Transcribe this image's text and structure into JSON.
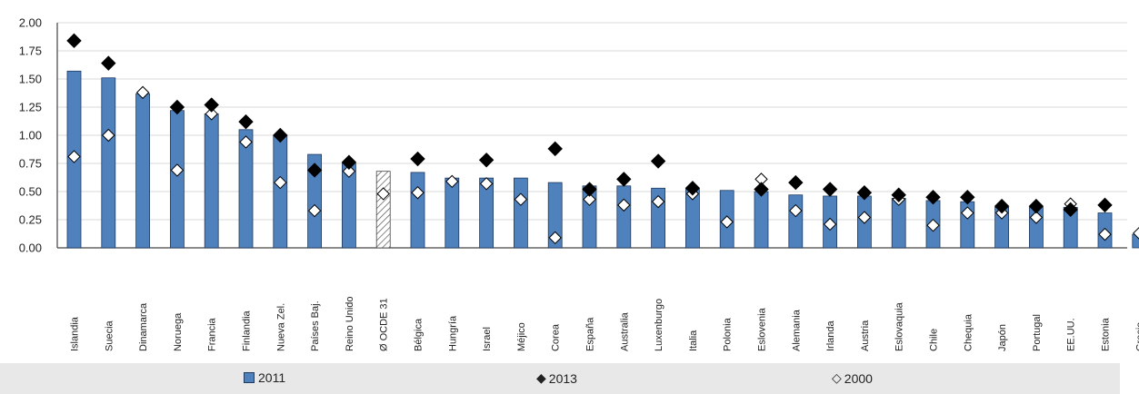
{
  "chart_data": {
    "type": "bar",
    "categories": [
      "Islandia",
      "Suecia",
      "Dinamarca",
      "Noruega",
      "Francia",
      "Finlandia",
      "Nueva Zel.",
      "Países Baj.",
      "Reino Unido",
      "Ø OCDE 31",
      "Bélgica",
      "Hungría",
      "Israel",
      "Méjico",
      "Corea",
      "España",
      "Australia",
      "Luxenburgo",
      "Italia",
      "Polonia",
      "Eslovenia",
      "Alemania",
      "Irlanda",
      "Austria",
      "Eslovaquia",
      "Chile",
      "Chequia",
      "Japón",
      "Portugal",
      "EE.UU.",
      "Estonia",
      "Grecia"
    ],
    "series": [
      {
        "name": "2011",
        "type": "bar",
        "values": [
          1.57,
          1.51,
          1.37,
          1.22,
          1.19,
          1.05,
          1.0,
          0.83,
          0.75,
          0.68,
          0.67,
          0.62,
          0.62,
          0.62,
          0.58,
          0.55,
          0.55,
          0.53,
          0.52,
          0.51,
          0.5,
          0.47,
          0.46,
          0.46,
          0.44,
          0.42,
          0.41,
          0.36,
          0.36,
          0.36,
          0.31,
          0.12
        ]
      },
      {
        "name": "2013",
        "type": "marker",
        "values": [
          1.84,
          1.64,
          null,
          1.25,
          1.27,
          1.12,
          1.0,
          0.69,
          0.76,
          null,
          0.79,
          null,
          0.78,
          null,
          0.88,
          0.52,
          0.61,
          0.77,
          0.53,
          null,
          0.52,
          0.58,
          0.52,
          0.49,
          0.47,
          0.45,
          0.45,
          0.37,
          0.37,
          0.34,
          0.38,
          null
        ]
      },
      {
        "name": "2000",
        "type": "marker",
        "values": [
          0.81,
          1.0,
          1.38,
          0.69,
          1.19,
          0.94,
          0.58,
          0.33,
          0.68,
          0.48,
          0.49,
          0.59,
          0.57,
          0.43,
          0.09,
          0.43,
          0.38,
          0.41,
          0.48,
          0.23,
          0.61,
          0.33,
          0.21,
          0.27,
          0.43,
          0.2,
          0.31,
          0.31,
          0.27,
          0.39,
          0.12,
          0.13
        ]
      }
    ],
    "highlight_category": "Ø OCDE 31",
    "yticks": [
      "0.00",
      "0.25",
      "0.50",
      "0.75",
      "1.00",
      "1.25",
      "1.50",
      "1.75",
      "2.00"
    ],
    "ylim": [
      0,
      2.0
    ],
    "title": "",
    "xlabel": "",
    "ylabel": "",
    "grid": true,
    "legend_position": "bottom",
    "colors": {
      "bar": "#4f81bd",
      "bar_edge": "#1f3a5f",
      "highlight_hatch": "#555555",
      "marker_2013": "#000000",
      "marker_2000": "#ffffff"
    }
  },
  "legend": {
    "items": [
      {
        "label": "2011",
        "glyph": ""
      },
      {
        "label": "2013",
        "glyph": "◆"
      },
      {
        "label": "2000",
        "glyph": "◇"
      }
    ]
  }
}
